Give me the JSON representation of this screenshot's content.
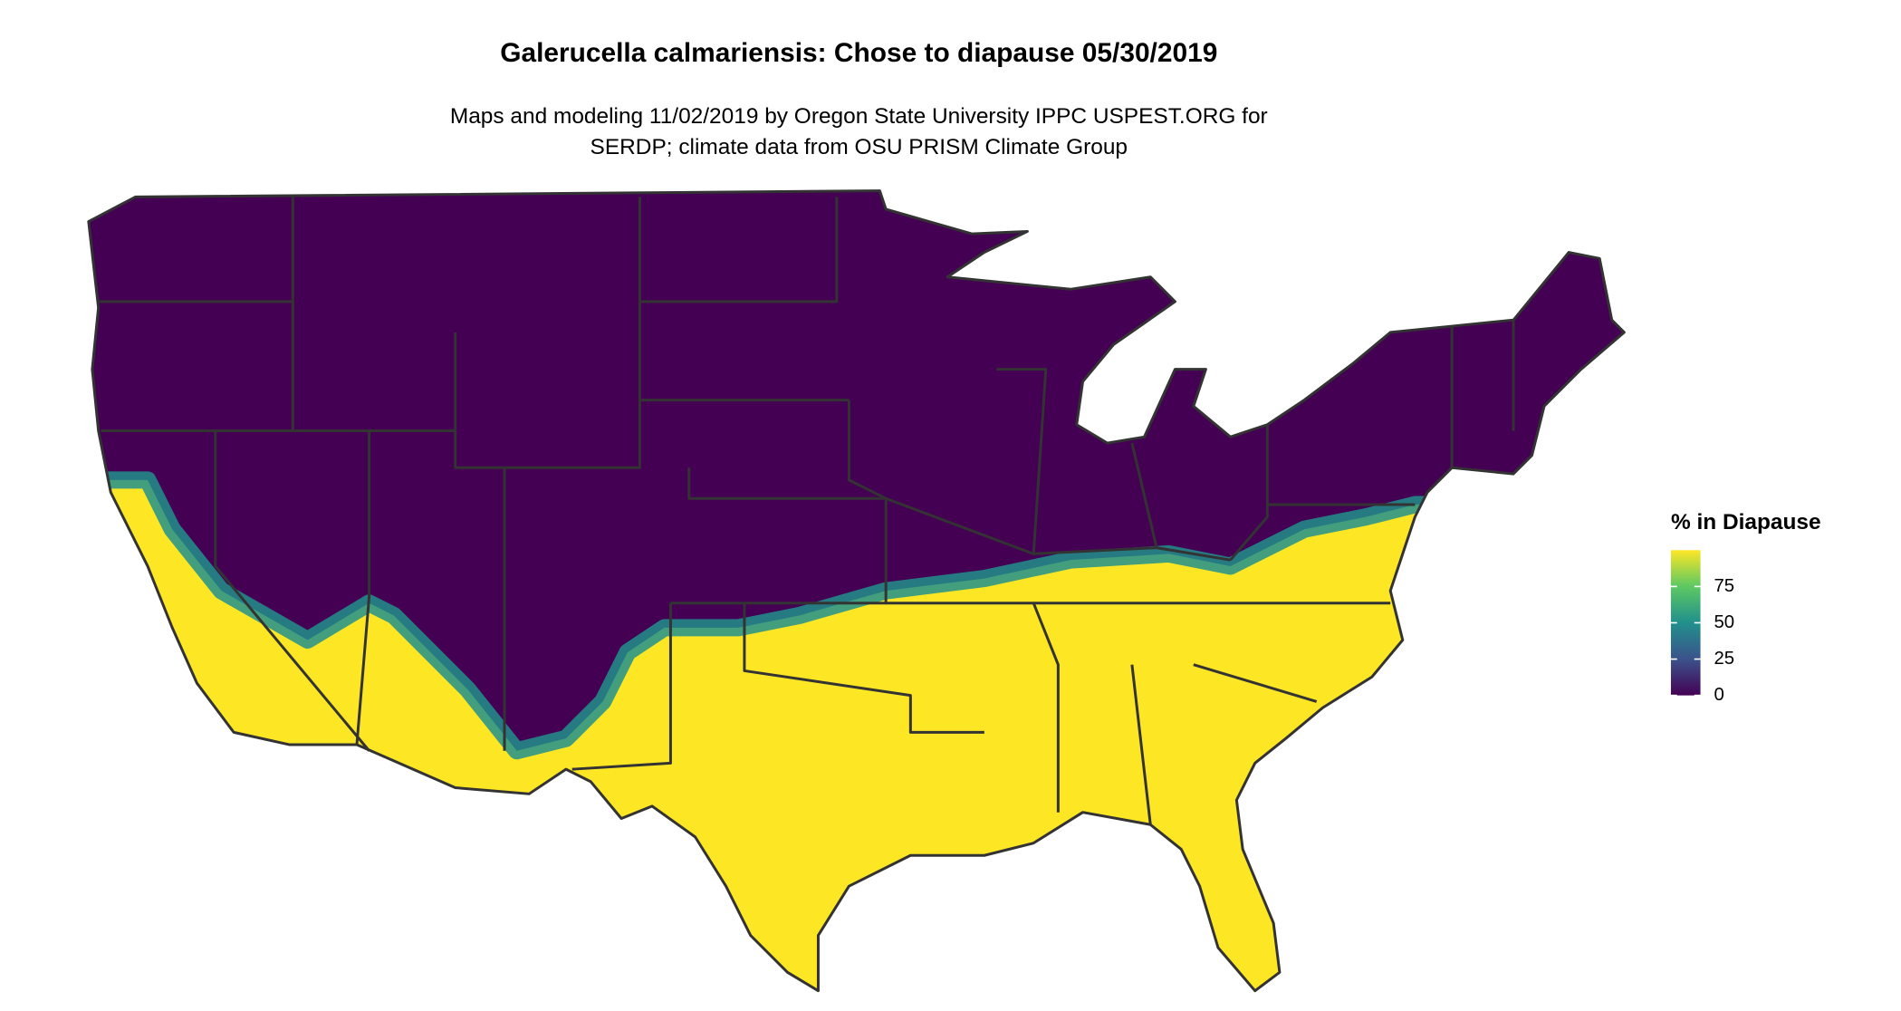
{
  "chart_data": {
    "type": "choropleth",
    "title": "Galerucella calmariensis: Chose to diapause 05/30/2019",
    "subtitle": [
      "Maps and modeling 11/02/2019 by Oregon State University IPPC USPEST.ORG for",
      "SERDP; climate data from OSU PRISM Climate Group"
    ],
    "legend_title": "% in Diapause",
    "colorbar_lim": [
      0,
      100
    ],
    "colorbar_ticks": [
      0,
      25,
      50,
      75
    ],
    "colors": [
      "#440154",
      "#3b528b",
      "#21908c",
      "#5dc863",
      "#fde725"
    ]
  }
}
